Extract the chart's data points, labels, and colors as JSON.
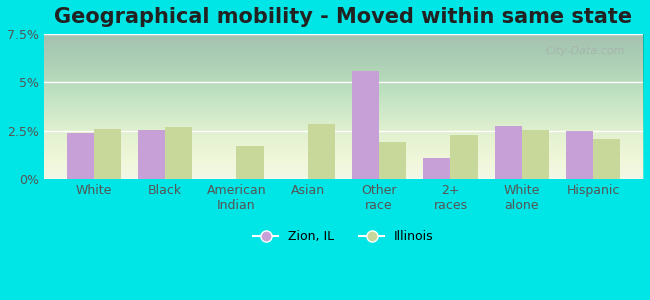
{
  "title": "Geographical mobility - Moved within same state",
  "categories": [
    "White",
    "Black",
    "American\nIndian",
    "Asian",
    "Other\nrace",
    "2+\nraces",
    "White\nalone",
    "Hispanic"
  ],
  "zion_values": [
    2.4,
    2.55,
    0.0,
    0.0,
    5.6,
    1.1,
    2.75,
    2.5
  ],
  "illinois_values": [
    2.6,
    2.7,
    1.7,
    2.85,
    1.9,
    2.3,
    2.55,
    2.1
  ],
  "zion_color": "#c8a0d8",
  "illinois_color": "#c8d89a",
  "background_outer": "#00e5e5",
  "ylim": [
    0,
    7.5
  ],
  "yticks": [
    0,
    2.5,
    5.0,
    7.5
  ],
  "ytick_labels": [
    "0%",
    "2.5%",
    "5%",
    "7.5%"
  ],
  "bar_width": 0.38,
  "legend_labels": [
    "Zion, IL",
    "Illinois"
  ],
  "watermark": "City-Data.com",
  "title_fontsize": 15,
  "tick_fontsize": 9,
  "legend_fontsize": 9
}
